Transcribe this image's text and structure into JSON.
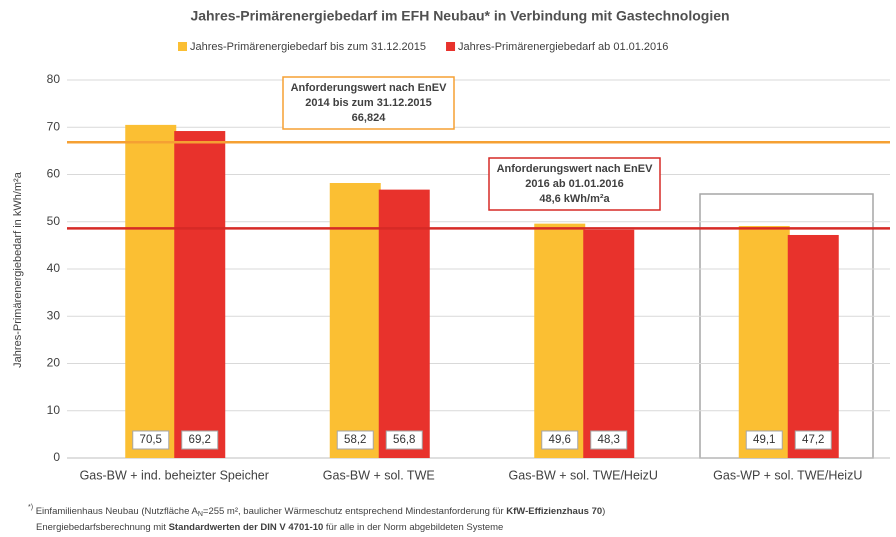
{
  "chart_data": {
    "type": "bar",
    "title": "Jahres-Primärenergiebedarf im EFH Neubau* in Verbindung mit Gastechnologien",
    "y_label": "Jahres-Primärenergiebedarf in kWh/m²a",
    "categories": [
      "Gas-BW + ind. beheizter Speicher",
      "Gas-BW + sol. TWE",
      "Gas-BW + sol. TWE/HeizU",
      "Gas-WP + sol. TWE/HeizU"
    ],
    "series": [
      {
        "name": "Jahres-Primärenergiebedarf bis zum 31.12.2015",
        "color": "#fbbf33",
        "values": [
          70.5,
          58.2,
          49.6,
          49.1
        ],
        "value_labels": [
          "70,5",
          "58,2",
          "49,6",
          "49,1"
        ]
      },
      {
        "name": "Jahres-Primärenergiebedarf ab 01.01.2016",
        "color": "#e8322c",
        "values": [
          69.2,
          56.8,
          48.3,
          47.2
        ],
        "value_labels": [
          "69,2",
          "56,8",
          "48,3",
          "47,2"
        ]
      }
    ],
    "reference_lines": [
      {
        "value": 66.824,
        "color": "#f5a033",
        "label": [
          "Anforderungswert nach EnEV",
          "2014 bis zum 31.12.2015",
          "66,824"
        ]
      },
      {
        "value": 48.6,
        "color": "#d62a26",
        "label": [
          "Anforderungswert nach EnEV",
          "2016 ab 01.01.2016",
          "48,6 kWh/m²a"
        ]
      }
    ],
    "ylim": [
      0,
      80
    ],
    "yticks": [
      0,
      10,
      20,
      30,
      40,
      50,
      60,
      70,
      80
    ],
    "grid": true,
    "legend": "top",
    "footnote": [
      [
        "*)",
        " Einfamilienhaus Neubau (Nutzfläche  A",
        "N",
        "=255 m², baulicher Wärmeschutz entsprechend Mindestanforderung für ",
        "KfW-Effizienzhaus 70",
        ")"
      ],
      [
        "Energiebedarfsberechnung mit ",
        "Standardwerten der DIN V 4701-10",
        " für alle in der Norm abgebildeten Systeme"
      ]
    ]
  }
}
